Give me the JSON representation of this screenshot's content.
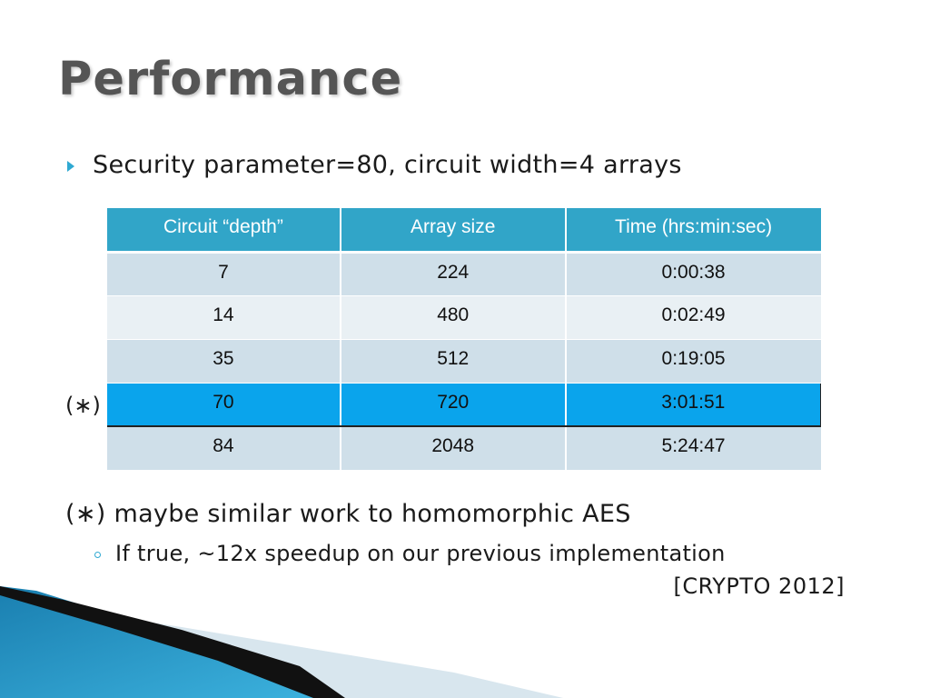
{
  "slide": {
    "title": "Performance",
    "bullet": "Security parameter=80, circuit width=4 arrays",
    "marker": "(∗)",
    "note": "(∗) maybe similar work to homomorphic AES",
    "sub_bullet": "If true, ~12x speedup on our previous implementation",
    "citation": "[CRYPTO 2012]"
  },
  "table": {
    "headers": [
      "Circuit “depth”",
      "Array size",
      "Time (hrs:min:sec)"
    ],
    "rows": [
      [
        "7",
        "224",
        "0:00:38"
      ],
      [
        "14",
        "480",
        "0:02:49"
      ],
      [
        "35",
        "512",
        "0:19:05"
      ],
      [
        "70",
        "720",
        "3:01:51"
      ],
      [
        "84",
        "2048",
        "5:24:47"
      ]
    ],
    "highlighted_row": 3
  },
  "colors": {
    "title": "#555555",
    "header_bg": "#31a5c8",
    "highlight_bg": "#0aa4ec",
    "bullet_accent": "#2fa9d2"
  }
}
